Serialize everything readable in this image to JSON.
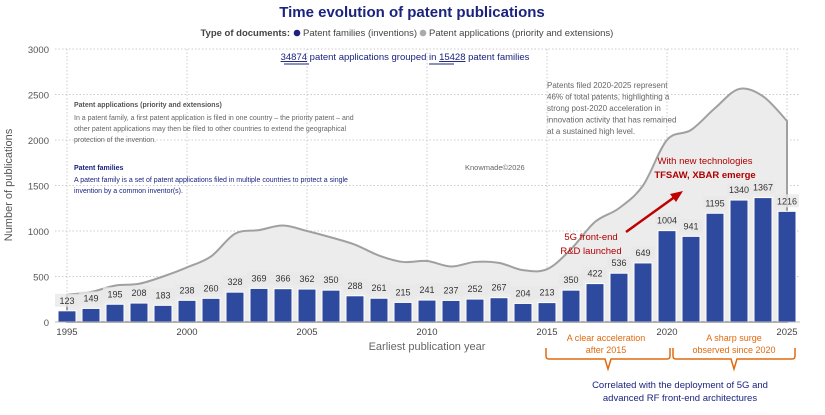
{
  "chart_data": {
    "type": "bar",
    "title": "Time evolution of patent publications",
    "legend": {
      "label": "Type of documents:",
      "placement": "top",
      "entries": [
        {
          "name": "Patent families (inventions)",
          "color": "#1a237e"
        },
        {
          "name": "Patent applications (priority and extensions)",
          "color": "#aaaaaa"
        }
      ]
    },
    "summary": {
      "applications": "34874",
      "text1": " patent applications grouped in ",
      "families": "15428",
      "text2": " patent families"
    },
    "xlabel": "Earliest publication year",
    "ylabel": "Number of publications",
    "ylim": [
      0,
      3000
    ],
    "yticks": [
      0,
      500,
      1000,
      1500,
      2000,
      2500,
      3000
    ],
    "xticks": [
      1995,
      2000,
      2005,
      2010,
      2015,
      2020,
      2025
    ],
    "grid": true,
    "categories": [
      1995,
      1996,
      1997,
      1998,
      1999,
      2000,
      2001,
      2002,
      2003,
      2004,
      2005,
      2006,
      2007,
      2008,
      2009,
      2010,
      2011,
      2012,
      2013,
      2014,
      2015,
      2016,
      2017,
      2018,
      2019,
      2020,
      2021,
      2022,
      2023,
      2024,
      2025
    ],
    "series": [
      {
        "name": "Patent families (inventions)",
        "type": "bar",
        "color": "#2e4a9e",
        "values": [
          123,
          149,
          195,
          208,
          183,
          238,
          260,
          328,
          369,
          366,
          362,
          350,
          288,
          261,
          215,
          241,
          237,
          252,
          267,
          204,
          213,
          350,
          422,
          536,
          649,
          1004,
          941,
          1195,
          1340,
          1367,
          1216
        ]
      },
      {
        "name": "Patent applications (priority and extensions)",
        "type": "area",
        "color": "#aaaaaa",
        "values": [
          300,
          330,
          400,
          420,
          500,
          600,
          720,
          970,
          1010,
          1060,
          1000,
          930,
          850,
          730,
          660,
          670,
          610,
          660,
          650,
          570,
          580,
          800,
          1100,
          1250,
          1500,
          2000,
          2110,
          2350,
          2560,
          2480,
          2210
        ]
      }
    ],
    "annotations": {
      "def_apps_title": "Patent applications (priority and extensions)",
      "def_apps_lines": [
        "In a patent family, a first patent application is filed in one country – the priority patent – and",
        "other patent applications may then be filed to other countries to extend the geographical",
        "protection of the invention."
      ],
      "def_fam_title": "Patent families",
      "def_fam_lines": [
        "A patent family is a set of patent applications filed in multiple countries to protect a single",
        "invention by a common inventor(s)."
      ],
      "watermark": "Knowmade©2026",
      "share_lines": [
        "Patents filed 2020-2025 represent",
        "46% of total patents, highlighting a",
        "strong post-2020 acceleration in",
        "innovation activity that has remained",
        "at a sustained high level."
      ],
      "tech_lines": [
        "With new technologies",
        "TFSAW, XBAR emerge"
      ],
      "fiveg_lines": [
        "5G front-end",
        "R&D launched"
      ],
      "accel_lines": [
        "A clear acceleration",
        "after 2015"
      ],
      "surge_lines": [
        "A sharp surge",
        "observed since 2020"
      ],
      "correlated_lines": [
        "Correlated with the deployment of 5G and",
        "advanced RF front-end architectures"
      ]
    }
  }
}
